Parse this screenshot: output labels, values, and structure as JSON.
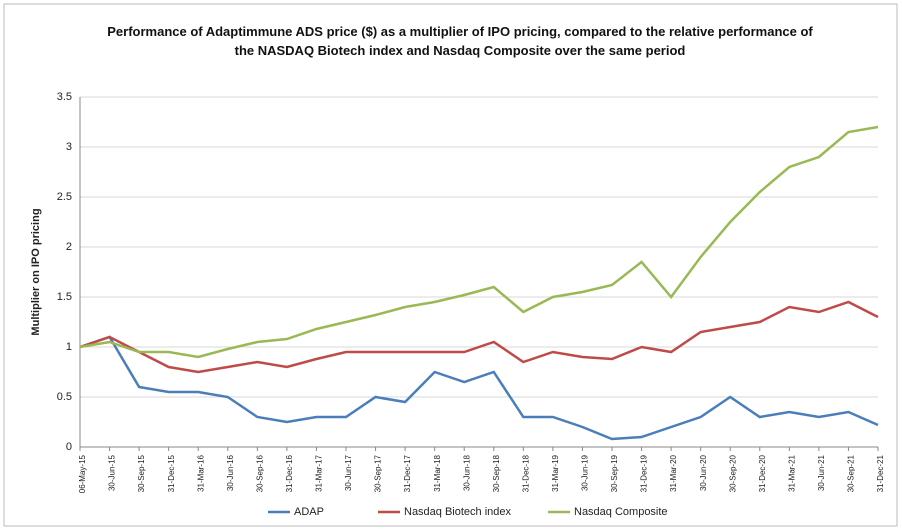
{
  "chart_data": {
    "type": "line",
    "title": "Performance of Adaptimmune ADS price ($) as a multiplier of IPO pricing, compared to the relative performance of the NASDAQ Biotech index and Nasdaq Composite over the same period",
    "y_label": "Multiplier on IPO pricing",
    "categories": [
      "06-May-15",
      "30-Jun-15",
      "30-Sep-15",
      "31-Dec-15",
      "31-Mar-16",
      "30-Jun-16",
      "30-Sep-16",
      "31-Dec-16",
      "31-Mar-17",
      "30-Jun-17",
      "30-Sep-17",
      "31-Dec-17",
      "31-Mar-18",
      "30-Jun-18",
      "30-Sep-18",
      "31-Dec-18",
      "31-Mar-19",
      "30-Jun-19",
      "30-Sep-19",
      "31-Dec-19",
      "31-Mar-20",
      "30-Jun-20",
      "30-Sep-20",
      "31-Dec-20",
      "31-Mar-21",
      "30-Jun-21",
      "30-Sep-21",
      "31-Dec-21"
    ],
    "series": [
      {
        "name": "ADAP",
        "color": "#4a7ebb",
        "values": [
          1.0,
          1.1,
          0.6,
          0.55,
          0.55,
          0.5,
          0.3,
          0.25,
          0.3,
          0.3,
          0.5,
          0.45,
          0.75,
          0.65,
          0.75,
          0.3,
          0.3,
          0.2,
          0.08,
          0.1,
          0.2,
          0.3,
          0.5,
          0.3,
          0.35,
          0.3,
          0.35,
          0.22
        ]
      },
      {
        "name": "Nasdaq Biotech index",
        "color": "#be4b48",
        "values": [
          1.0,
          1.1,
          0.95,
          0.8,
          0.75,
          0.8,
          0.85,
          0.8,
          0.88,
          0.95,
          0.95,
          0.95,
          0.95,
          0.95,
          1.05,
          0.85,
          0.95,
          0.9,
          0.88,
          1.0,
          0.95,
          1.15,
          1.2,
          1.25,
          1.4,
          1.35,
          1.45,
          1.3
        ]
      },
      {
        "name": "Nasdaq Composite",
        "color": "#98b954",
        "values": [
          1.0,
          1.05,
          0.95,
          0.95,
          0.9,
          0.98,
          1.05,
          1.08,
          1.18,
          1.25,
          1.32,
          1.4,
          1.45,
          1.52,
          1.6,
          1.35,
          1.5,
          1.55,
          1.62,
          1.85,
          1.5,
          1.9,
          2.25,
          2.55,
          2.8,
          2.9,
          3.15,
          3.2
        ]
      }
    ],
    "ylim": [
      0,
      3.5
    ],
    "yticks": [
      0,
      0.5,
      1,
      1.5,
      2,
      2.5,
      3,
      3.5
    ],
    "grid": true,
    "legend": "bottom"
  }
}
